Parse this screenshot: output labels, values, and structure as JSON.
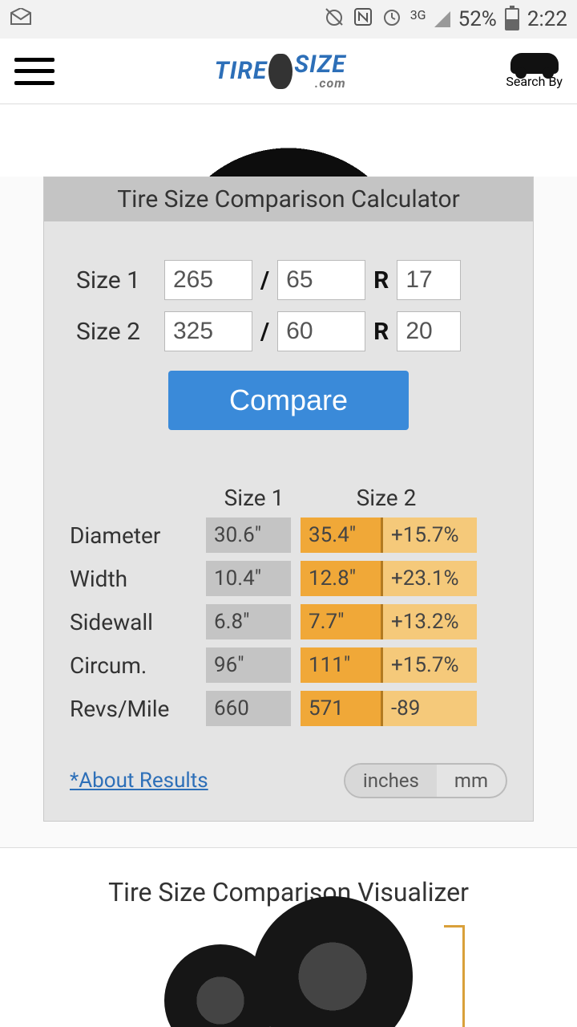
{
  "status": {
    "network": "3G",
    "battery_pct": "52%",
    "time": "2:22"
  },
  "header": {
    "logo_a": "TIRE",
    "logo_b": "SIZE",
    "logo_c": ".com",
    "search_by": "Search By"
  },
  "calculator": {
    "title": "Tire Size Comparison Calculator",
    "size1_label": "Size 1",
    "size2_label": "Size 2",
    "size1": {
      "width": "265",
      "ratio": "65",
      "rim": "17"
    },
    "size2": {
      "width": "325",
      "ratio": "60",
      "rim": "20"
    },
    "slash": "/",
    "r": "R",
    "compare_btn": "Compare"
  },
  "results": {
    "head1": "Size 1",
    "head2": "Size 2",
    "rows": [
      {
        "label": "Diameter",
        "v1": "30.6\"",
        "v2": "35.4\"",
        "diff": "+15.7%"
      },
      {
        "label": "Width",
        "v1": "10.4\"",
        "v2": "12.8\"",
        "diff": "+23.1%"
      },
      {
        "label": "Sidewall",
        "v1": "6.8\"",
        "v2": "7.7\"",
        "diff": "+13.2%"
      },
      {
        "label": "Circum.",
        "v1": "96\"",
        "v2": "111\"",
        "diff": "+15.7%"
      },
      {
        "label": "Revs/Mile",
        "v1": "660",
        "v2": "571",
        "diff": "-89"
      }
    ],
    "about": "*About Results",
    "unit_in": "inches",
    "unit_mm": "mm",
    "colors": {
      "size1_bg": "#c4c4c4",
      "size2_bg": "#f0a838",
      "diff_bg": "#f5c97a",
      "diff_border": "#b27a20"
    }
  },
  "visualizer": {
    "title": "Tire Size Comparison Visualizer"
  }
}
